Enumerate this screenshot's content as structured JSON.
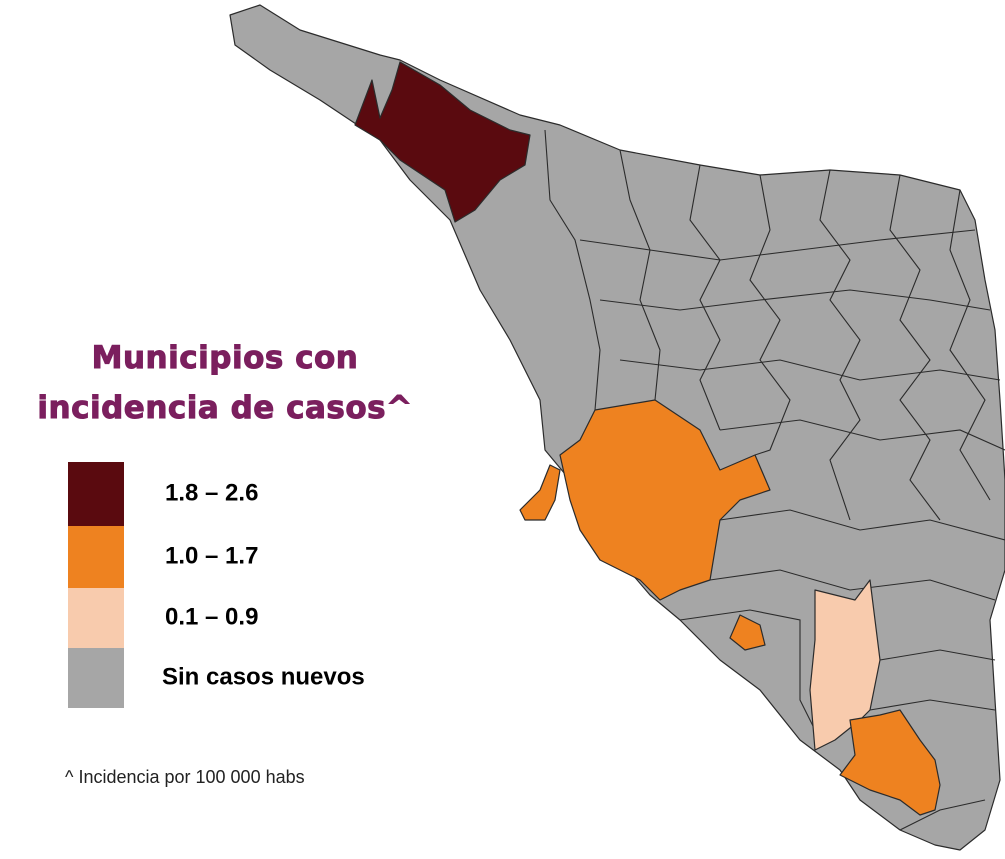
{
  "title": [
    "Municipios con",
    "incidencia de casos^"
  ],
  "legend": [
    {
      "label": "1.8 – 2.6",
      "color": "#5a0a0f"
    },
    {
      "label": "1.0 – 1.7",
      "color": "#ee8220"
    },
    {
      "label": "0.1 – 0.9",
      "color": "#f8cbad"
    },
    {
      "label": "Sin casos nuevos",
      "color": "#a6a6a6"
    }
  ],
  "footnote": "^ Incidencia por 100 000 habs"
}
